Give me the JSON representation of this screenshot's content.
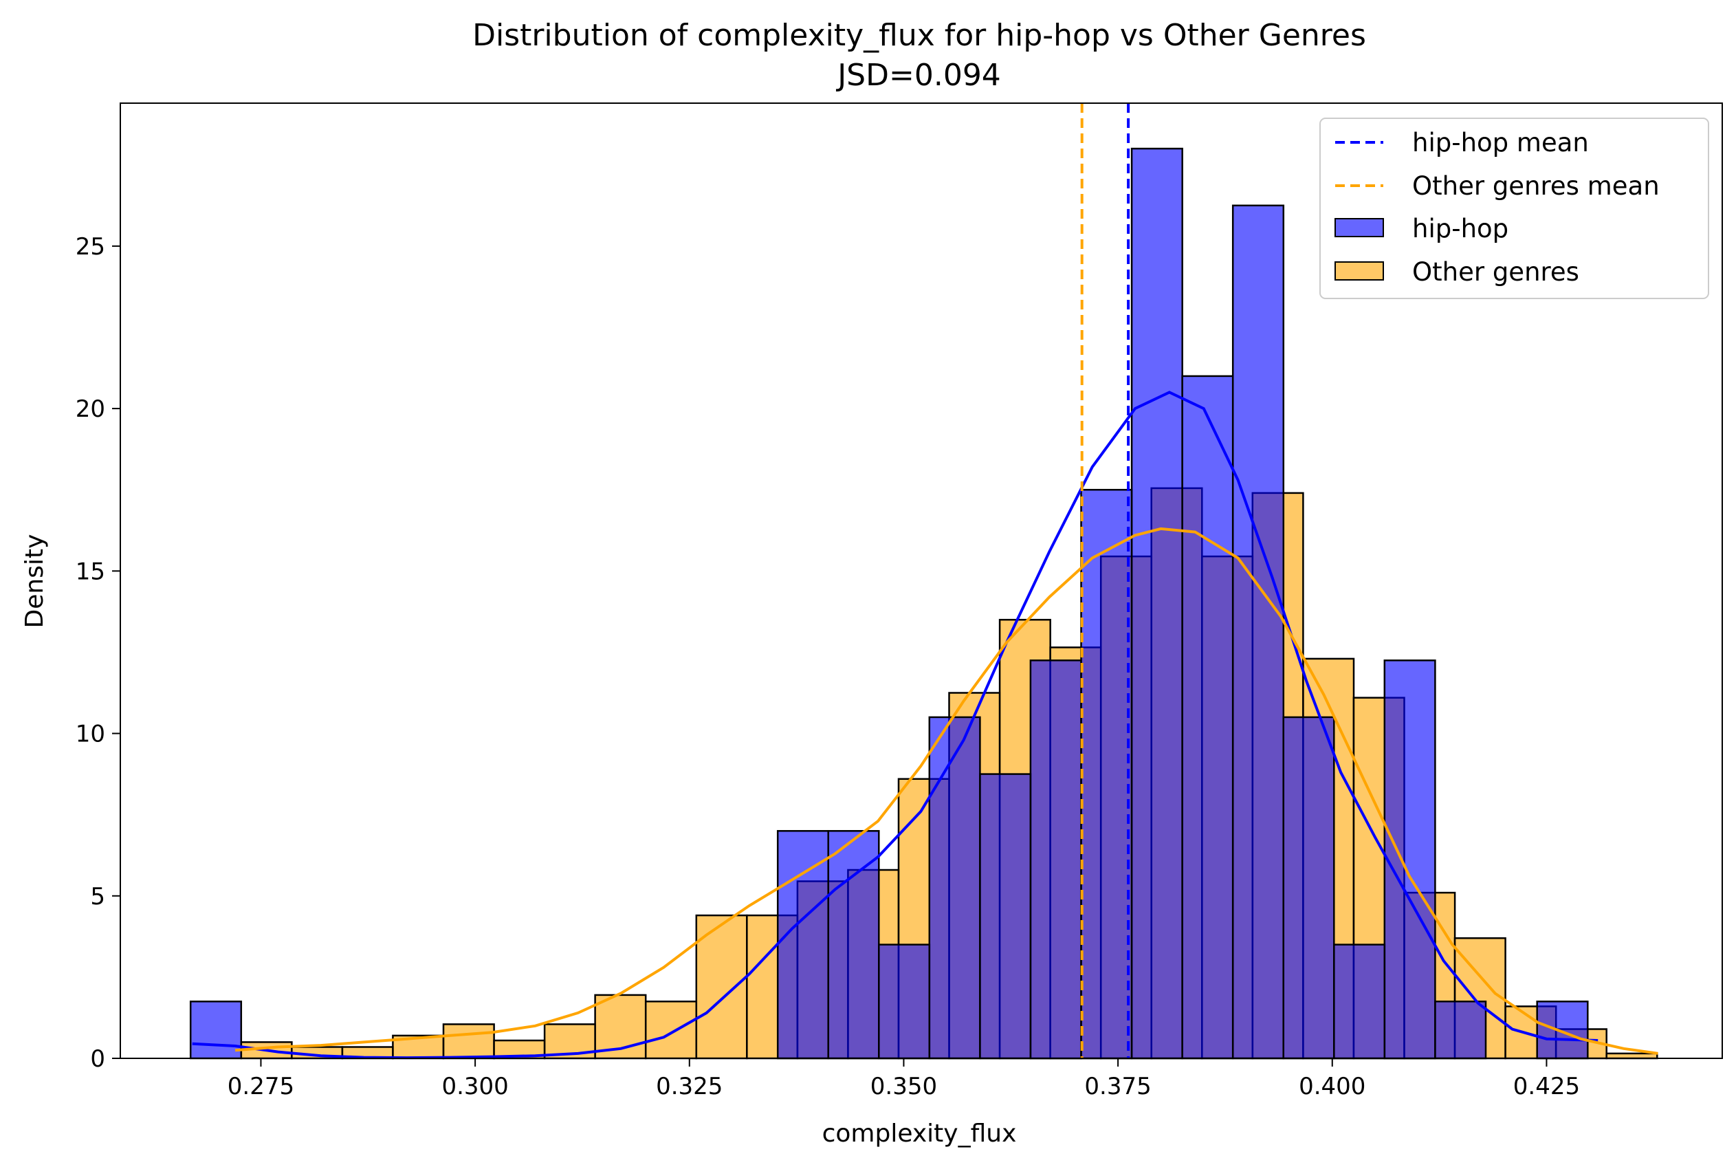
{
  "chart_data": {
    "type": "histogram",
    "title": "Distribution of complexity_flux for hip-hop vs Other Genres",
    "subtitle": "JSD=0.094",
    "xlabel": "complexity_flux",
    "ylabel": "Density",
    "xlim": [
      0.2586,
      0.4455
    ],
    "ylim": [
      0,
      29.4
    ],
    "x_ticks": [
      0.275,
      0.3,
      0.325,
      0.35,
      0.375,
      0.4,
      0.425
    ],
    "x_tick_labels": [
      "0.275",
      "0.300",
      "0.325",
      "0.350",
      "0.375",
      "0.400",
      "0.425"
    ],
    "y_ticks": [
      0,
      5,
      10,
      15,
      20,
      25
    ],
    "y_tick_labels": [
      "0",
      "5",
      "10",
      "15",
      "20",
      "25"
    ],
    "grid": false,
    "legend_position": "top-right",
    "legend": [
      "hip-hop mean",
      "Other genres mean",
      "hip-hop",
      "Other genres"
    ],
    "series": [
      {
        "name": "hip-hop",
        "color": "#0000ff",
        "bins": [
          [
            0.2668,
            0.2727,
            1.75
          ],
          [
            0.3353,
            0.3412,
            7.0
          ],
          [
            0.3412,
            0.3471,
            7.0
          ],
          [
            0.3471,
            0.353,
            3.5
          ],
          [
            0.353,
            0.3589,
            10.5
          ],
          [
            0.3589,
            0.3648,
            8.75
          ],
          [
            0.3648,
            0.3707,
            12.25
          ],
          [
            0.3707,
            0.3766,
            17.5
          ],
          [
            0.3766,
            0.3825,
            28.0
          ],
          [
            0.3825,
            0.3884,
            21.0
          ],
          [
            0.3884,
            0.3943,
            26.25
          ],
          [
            0.3943,
            0.4002,
            10.5
          ],
          [
            0.4002,
            0.4061,
            3.5
          ],
          [
            0.4061,
            0.412,
            12.25
          ],
          [
            0.412,
            0.4179,
            1.75
          ],
          [
            0.4239,
            0.4298,
            1.75
          ]
        ]
      },
      {
        "name": "Other genres",
        "color": "#ffa500",
        "bins": [
          [
            0.2727,
            0.2786,
            0.5
          ],
          [
            0.2786,
            0.2845,
            0.35
          ],
          [
            0.2845,
            0.2904,
            0.35
          ],
          [
            0.2904,
            0.2963,
            0.7
          ],
          [
            0.2963,
            0.3022,
            1.05
          ],
          [
            0.3022,
            0.3081,
            0.55
          ],
          [
            0.3081,
            0.314,
            1.05
          ],
          [
            0.314,
            0.3199,
            1.95
          ],
          [
            0.3199,
            0.3258,
            1.75
          ],
          [
            0.3258,
            0.3317,
            4.4
          ],
          [
            0.3317,
            0.3376,
            4.4
          ],
          [
            0.3376,
            0.3435,
            5.45
          ],
          [
            0.3435,
            0.3494,
            5.8
          ],
          [
            0.3494,
            0.3553,
            8.6
          ],
          [
            0.3553,
            0.3612,
            11.25
          ],
          [
            0.3612,
            0.3671,
            13.5
          ],
          [
            0.3671,
            0.373,
            12.65
          ],
          [
            0.373,
            0.3789,
            15.45
          ],
          [
            0.3789,
            0.3848,
            17.55
          ],
          [
            0.3848,
            0.3907,
            15.45
          ],
          [
            0.3907,
            0.3966,
            17.4
          ],
          [
            0.3966,
            0.4025,
            12.3
          ],
          [
            0.4025,
            0.4084,
            11.1
          ],
          [
            0.4084,
            0.4143,
            5.1
          ],
          [
            0.4143,
            0.4202,
            3.7
          ],
          [
            0.4202,
            0.4261,
            1.6
          ],
          [
            0.4261,
            0.432,
            0.9
          ],
          [
            0.432,
            0.4379,
            0.15
          ]
        ]
      }
    ],
    "kde": [
      {
        "name": "hip-hop",
        "color": "#0000ff",
        "points": [
          [
            0.267,
            0.45
          ],
          [
            0.272,
            0.38
          ],
          [
            0.277,
            0.2
          ],
          [
            0.282,
            0.08
          ],
          [
            0.287,
            0.03
          ],
          [
            0.292,
            0.02
          ],
          [
            0.297,
            0.03
          ],
          [
            0.302,
            0.05
          ],
          [
            0.307,
            0.08
          ],
          [
            0.312,
            0.15
          ],
          [
            0.317,
            0.3
          ],
          [
            0.322,
            0.65
          ],
          [
            0.327,
            1.4
          ],
          [
            0.332,
            2.6
          ],
          [
            0.337,
            4.0
          ],
          [
            0.342,
            5.2
          ],
          [
            0.347,
            6.2
          ],
          [
            0.352,
            7.6
          ],
          [
            0.357,
            9.8
          ],
          [
            0.362,
            12.8
          ],
          [
            0.367,
            15.6
          ],
          [
            0.372,
            18.2
          ],
          [
            0.377,
            20.0
          ],
          [
            0.381,
            20.5
          ],
          [
            0.385,
            20.0
          ],
          [
            0.389,
            17.8
          ],
          [
            0.393,
            14.8
          ],
          [
            0.397,
            11.6
          ],
          [
            0.401,
            8.8
          ],
          [
            0.405,
            6.8
          ],
          [
            0.409,
            4.9
          ],
          [
            0.413,
            3.0
          ],
          [
            0.417,
            1.7
          ],
          [
            0.421,
            0.9
          ],
          [
            0.425,
            0.6
          ],
          [
            0.431,
            0.55
          ]
        ]
      },
      {
        "name": "Other genres",
        "color": "#ffa500",
        "points": [
          [
            0.272,
            0.25
          ],
          [
            0.277,
            0.35
          ],
          [
            0.282,
            0.4
          ],
          [
            0.287,
            0.5
          ],
          [
            0.292,
            0.6
          ],
          [
            0.297,
            0.7
          ],
          [
            0.302,
            0.8
          ],
          [
            0.307,
            1.0
          ],
          [
            0.312,
            1.4
          ],
          [
            0.317,
            2.0
          ],
          [
            0.322,
            2.8
          ],
          [
            0.327,
            3.8
          ],
          [
            0.332,
            4.7
          ],
          [
            0.337,
            5.5
          ],
          [
            0.342,
            6.3
          ],
          [
            0.347,
            7.3
          ],
          [
            0.352,
            9.0
          ],
          [
            0.357,
            11.0
          ],
          [
            0.362,
            12.8
          ],
          [
            0.367,
            14.2
          ],
          [
            0.372,
            15.4
          ],
          [
            0.377,
            16.1
          ],
          [
            0.38,
            16.3
          ],
          [
            0.384,
            16.2
          ],
          [
            0.389,
            15.4
          ],
          [
            0.394,
            13.6
          ],
          [
            0.399,
            11.2
          ],
          [
            0.404,
            8.4
          ],
          [
            0.409,
            5.6
          ],
          [
            0.414,
            3.5
          ],
          [
            0.419,
            2.0
          ],
          [
            0.424,
            1.1
          ],
          [
            0.429,
            0.6
          ],
          [
            0.434,
            0.3
          ],
          [
            0.438,
            0.15
          ]
        ]
      }
    ],
    "mean_lines": [
      {
        "name": "hip-hop mean",
        "x": 0.3762,
        "color": "#0000ff"
      },
      {
        "name": "Other genres mean",
        "x": 0.3708,
        "color": "#ffa500"
      }
    ]
  }
}
